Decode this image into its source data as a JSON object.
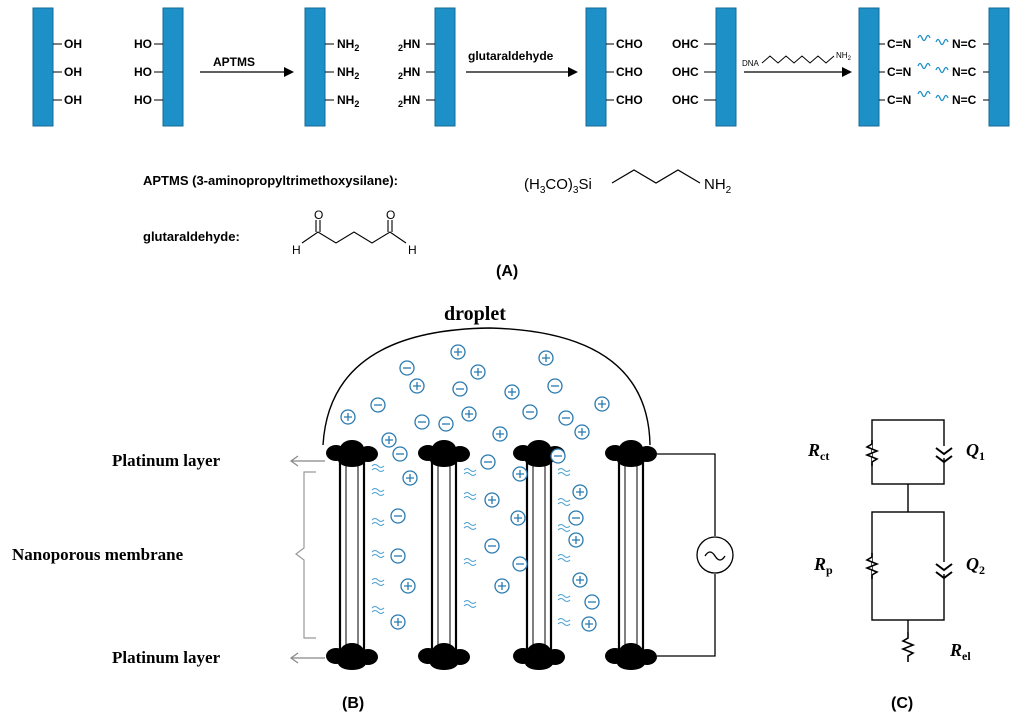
{
  "panel_a": {
    "stage1": [
      "OH",
      "OH",
      "OH"
    ],
    "stage1_right": [
      "HO",
      "HO",
      "HO"
    ],
    "reagent1": "APTMS",
    "stage2": [
      "NH",
      "NH",
      "NH"
    ],
    "stage2_right": [
      "HN",
      "HN",
      "HN"
    ],
    "sub2": "2",
    "reagent2": "glutaraldehyde",
    "stage3": [
      "CHO",
      "CHO",
      "CHO"
    ],
    "stage3_right": [
      "OHC",
      "OHC",
      "OHC"
    ],
    "reagent3_dna": "DNA",
    "reagent3_nh2": "NH",
    "stage4_left": [
      "C=N",
      "C=N",
      "C=N"
    ],
    "stage4_right": [
      "N=C",
      "N=C",
      "N=C"
    ],
    "aptms_name": "APTMS (3-aminopropyltrimethoxysilane):",
    "aptms_formula_left": "(H",
    "aptms_formula_c": "C",
    "aptms_formula_o": "O)",
    "aptms_formula_si": "Si",
    "aptms_sub3": "3",
    "aptms_nh": "NH",
    "glut_name": "glutaraldehyde:",
    "glut_o": "O",
    "glut_h": "H",
    "caption": "(A)"
  },
  "panel_b": {
    "droplet_label": "droplet",
    "platinum_top": "Platinum layer",
    "platinum_bottom": "Platinum layer",
    "membrane_label": "Nanoporous membrane",
    "caption": "(B)"
  },
  "panel_c": {
    "r_ct": "R",
    "r_ct_sub": "ct",
    "q1": "Q",
    "q1_sub": "1",
    "r_p": "R",
    "r_p_sub": "p",
    "q2": "Q",
    "q2_sub": "2",
    "r_el": "R",
    "r_el_sub": "el",
    "caption": "(C)"
  },
  "colors": {
    "electrode": "#1e90c8",
    "electrode_dark": "#156a96",
    "ion": "#2a7ab0",
    "ink": "#000000"
  }
}
